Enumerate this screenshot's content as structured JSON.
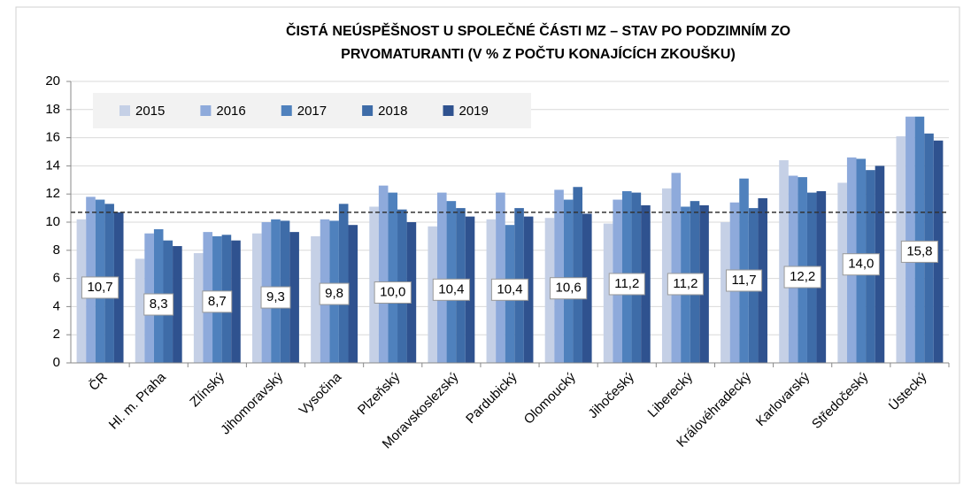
{
  "chart_data": {
    "type": "bar",
    "title_lines": [
      "ČISTÁ NEÚSPĚŠNOST U SPOLEČNÉ ČÁSTI MZ – STAV PO PODZIMNÍM ZO",
      "PRVOMATURANTI (V % Z POČTU KONAJÍCÍCH ZKOUŠKU)"
    ],
    "categories": [
      "ČR",
      "Hl. m. Praha",
      "Zlínský",
      "Jihomoravský",
      "Vysočina",
      "Plzeňský",
      "Moravskoslezský",
      "Pardubický",
      "Olomoucký",
      "Jihočeský",
      "Liberecký",
      "Královéhradecký",
      "Karlovarský",
      "Středočeský",
      "Ústecký"
    ],
    "series": [
      {
        "name": "2015",
        "color": "#c5d0e6",
        "values": [
          10.2,
          7.4,
          7.8,
          9.2,
          9.0,
          11.1,
          9.7,
          10.2,
          10.3,
          9.9,
          12.4,
          10.0,
          14.4,
          12.8,
          16.1
        ]
      },
      {
        "name": "2016",
        "color": "#8eaadb",
        "values": [
          11.8,
          9.2,
          9.3,
          10.0,
          10.2,
          12.6,
          12.1,
          12.1,
          12.3,
          11.6,
          13.5,
          11.4,
          13.3,
          14.6,
          17.5
        ]
      },
      {
        "name": "2017",
        "color": "#4f81bd",
        "values": [
          11.6,
          9.5,
          9.0,
          10.2,
          10.1,
          12.1,
          11.5,
          9.8,
          11.6,
          12.2,
          11.1,
          13.1,
          13.2,
          14.5,
          17.5
        ]
      },
      {
        "name": "2018",
        "color": "#3e6ca8",
        "values": [
          11.3,
          8.7,
          9.1,
          10.1,
          11.3,
          10.9,
          11.0,
          11.0,
          12.5,
          12.1,
          11.5,
          11.0,
          12.1,
          13.7,
          16.3
        ]
      },
      {
        "name": "2019",
        "color": "#2f528f",
        "values": [
          10.7,
          8.3,
          8.7,
          9.3,
          9.8,
          10.0,
          10.4,
          10.4,
          10.6,
          11.2,
          11.2,
          11.7,
          12.2,
          14.0,
          15.8
        ],
        "value_labels": [
          "10,7",
          "8,3",
          "8,7",
          "9,3",
          "9,8",
          "10,0",
          "10,4",
          "10,4",
          "10,6",
          "11,2",
          "11,2",
          "11,7",
          "12,2",
          "14,0",
          "15,8"
        ]
      }
    ],
    "reference_line": 10.7,
    "ylim": [
      0,
      20
    ],
    "yticks": [
      0,
      2,
      4,
      6,
      8,
      10,
      12,
      14,
      16,
      18,
      20
    ],
    "grid": true,
    "legend": "top-left"
  }
}
